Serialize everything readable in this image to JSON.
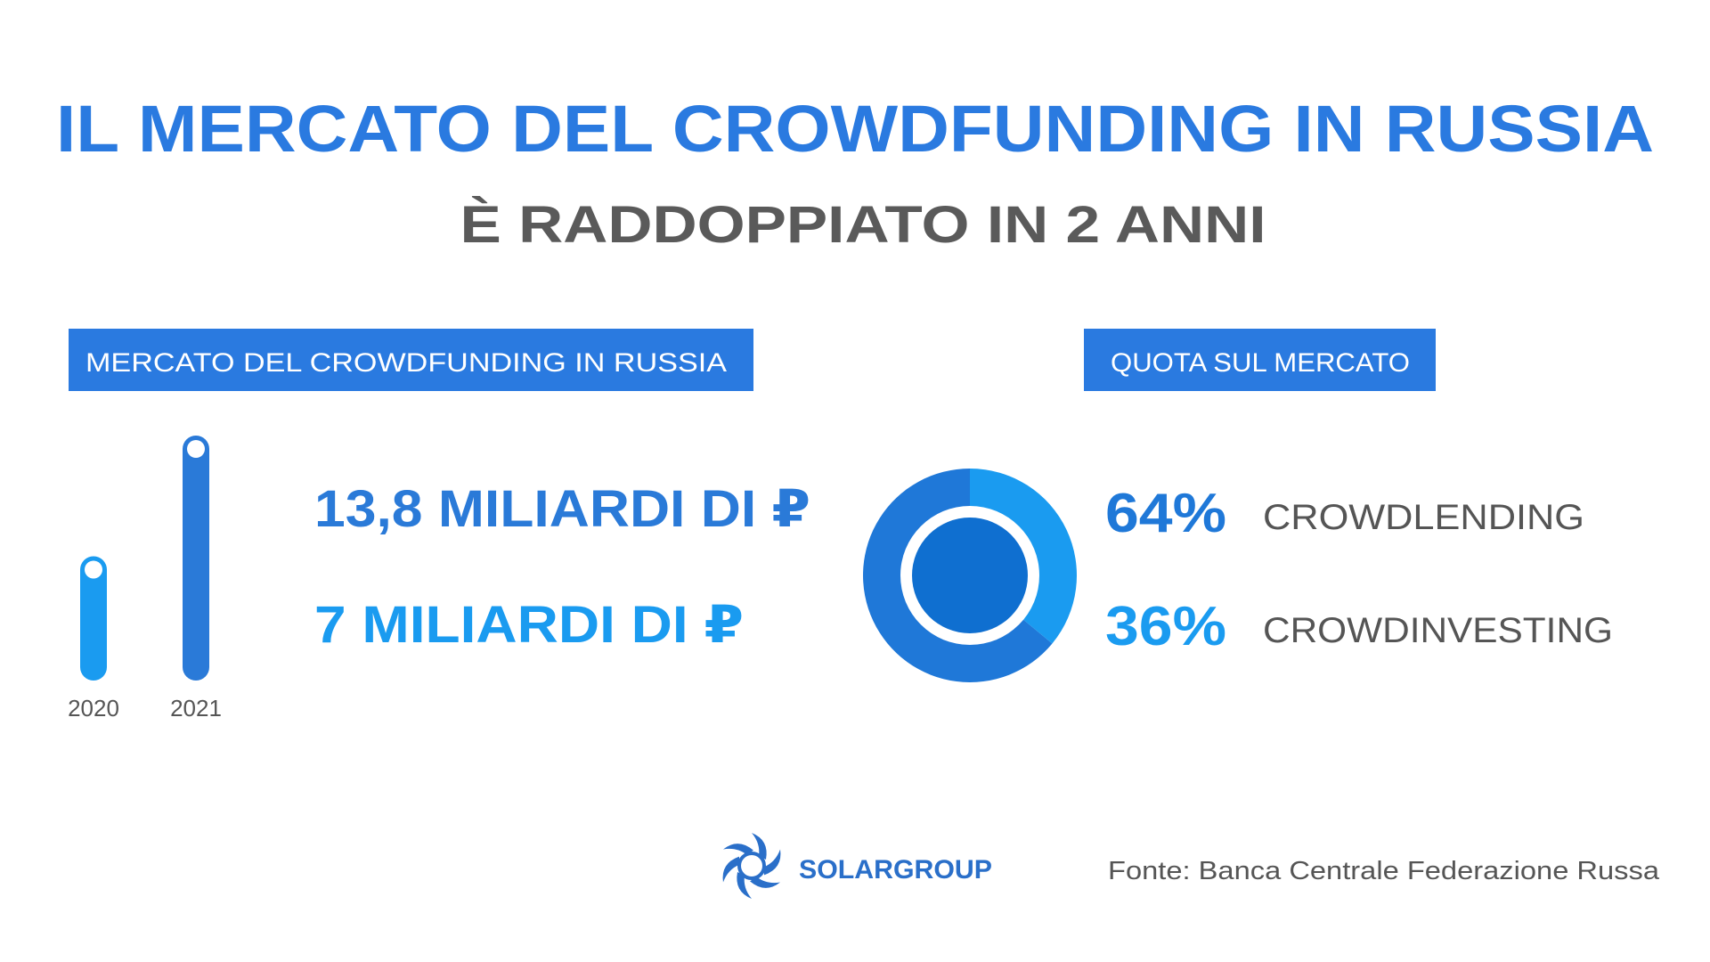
{
  "header": {
    "title": "IL MERCATO DEL CROWDFUNDING IN RUSSIA",
    "subtitle": "È RADDOPPIATO IN 2 ANNI"
  },
  "chart_data": [
    {
      "type": "bar",
      "title": "MERCATO DEL CROWDFUNDING IN RUSSIA",
      "categories": [
        "2020",
        "2021"
      ],
      "values": [
        7,
        13.8
      ],
      "value_labels": [
        "7 MILIARDI DI ₽",
        "13,8 MILIARDI DI ₽"
      ],
      "colors": [
        "#1a9bf0",
        "#2a7ad8"
      ]
    },
    {
      "type": "pie",
      "title": "QUOTA SUL MERCATO",
      "categories": [
        "CROWDLENDING",
        "CROWDINVESTING"
      ],
      "values": [
        64,
        36
      ],
      "value_labels": [
        "64%",
        "36%"
      ],
      "colors": [
        "#1f78d8",
        "#1a9bf0"
      ]
    }
  ],
  "footer": {
    "logo": "SOLARGROUP",
    "source": "Fonte: Banca Centrale Federazione Russa"
  }
}
